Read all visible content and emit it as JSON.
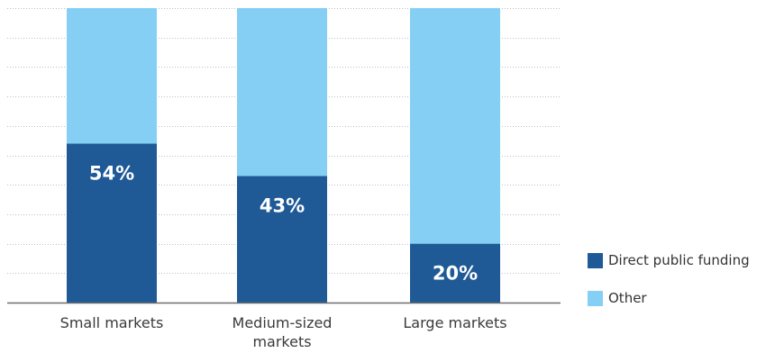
{
  "chart_data": {
    "type": "bar",
    "stacked": true,
    "categories": [
      "Small markets",
      "Medium-sized markets",
      "Large markets"
    ],
    "series": [
      {
        "name": "Direct public funding",
        "values": [
          54,
          43,
          20
        ],
        "labels": [
          "54%",
          "43%",
          "20%"
        ],
        "color": "#1f5a96"
      },
      {
        "name": "Other",
        "values": [
          46,
          57,
          80
        ],
        "color": "#84cff3"
      }
    ],
    "ylim": [
      0,
      100
    ],
    "grid": true,
    "legend_position": "bottom-right"
  },
  "legend": {
    "items": [
      {
        "label": "Direct public funding",
        "color": "#1f5a96"
      },
      {
        "label": "Other",
        "color": "#84cff3"
      }
    ]
  }
}
